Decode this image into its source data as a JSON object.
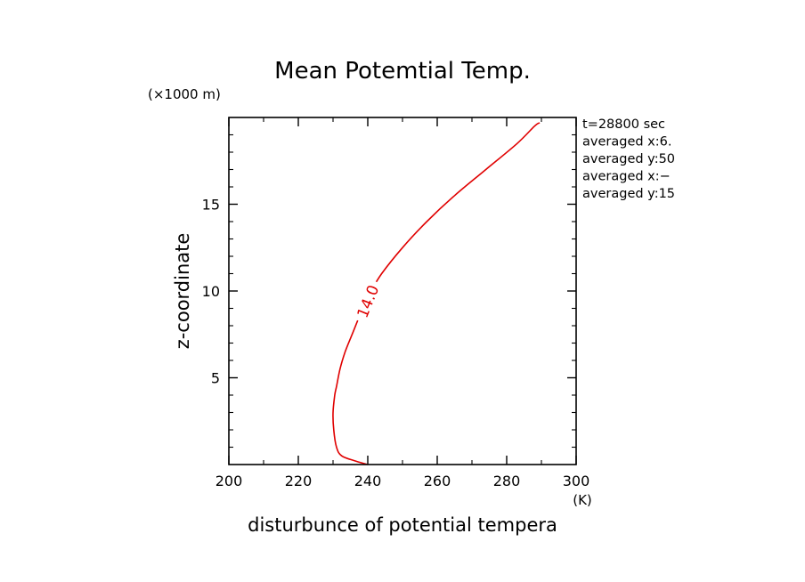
{
  "chart_data": {
    "type": "line",
    "title": "Mean Potemtial Temp.",
    "xlabel": "disturbunce of potential tempera",
    "ylabel": "z-coordinate",
    "x_unit": "(K)",
    "y_unit": "(×1000 m)",
    "xlim": [
      200,
      300
    ],
    "ylim": [
      0,
      20
    ],
    "x_ticks": [
      200,
      220,
      240,
      260,
      280,
      300
    ],
    "y_ticks": [
      5,
      10,
      15
    ],
    "grid": false,
    "annotations": [
      "t=28800 sec",
      "averaged  x:6.",
      "averaged  y:50",
      "averaged  x:−",
      "averaged  y:15"
    ],
    "series": [
      {
        "contour_label": "14.0",
        "color": "#e00000",
        "points": [
          {
            "x": 240.0,
            "z": 0.0
          },
          {
            "x": 236.5,
            "z": 0.2
          },
          {
            "x": 232.5,
            "z": 0.5
          },
          {
            "x": 231.0,
            "z": 1.0
          },
          {
            "x": 230.2,
            "z": 2.0
          },
          {
            "x": 230.0,
            "z": 3.0
          },
          {
            "x": 230.5,
            "z": 4.0
          },
          {
            "x": 231.0,
            "z": 4.5
          },
          {
            "x": 232.0,
            "z": 5.5
          },
          {
            "x": 233.5,
            "z": 6.5
          },
          {
            "x": 235.5,
            "z": 7.5
          },
          {
            "x": 237.5,
            "z": 8.5
          },
          {
            "x": 238.7,
            "z": 9.0
          },
          {
            "x": 241.0,
            "z": 10.0
          },
          {
            "x": 244.0,
            "z": 11.0
          },
          {
            "x": 250.0,
            "z": 12.5
          },
          {
            "x": 257.0,
            "z": 14.0
          },
          {
            "x": 265.0,
            "z": 15.5
          },
          {
            "x": 274.0,
            "z": 17.0
          },
          {
            "x": 283.0,
            "z": 18.5
          },
          {
            "x": 288.0,
            "z": 19.5
          },
          {
            "x": 289.5,
            "z": 19.7
          }
        ]
      }
    ]
  }
}
